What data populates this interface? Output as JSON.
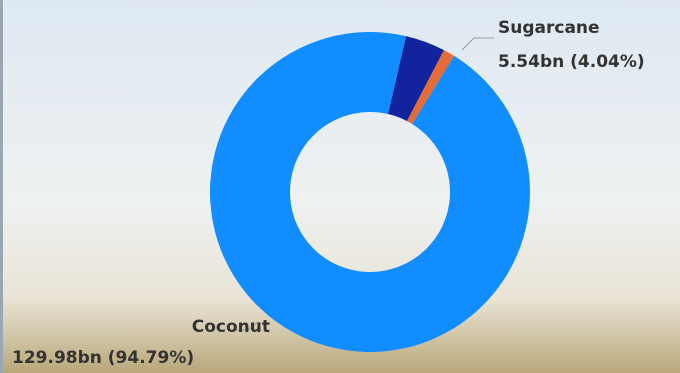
{
  "chart_data": {
    "type": "donut",
    "categories": [
      "Sugarcane",
      null,
      "Coconut"
    ],
    "values": [
      5.54,
      1.6,
      129.98
    ],
    "value_labels": [
      "5.54bn (4.04%)",
      null,
      "129.98bn (94.79%)"
    ],
    "colors": [
      "#12239e",
      "#e66c37",
      "#118dff"
    ]
  }
}
